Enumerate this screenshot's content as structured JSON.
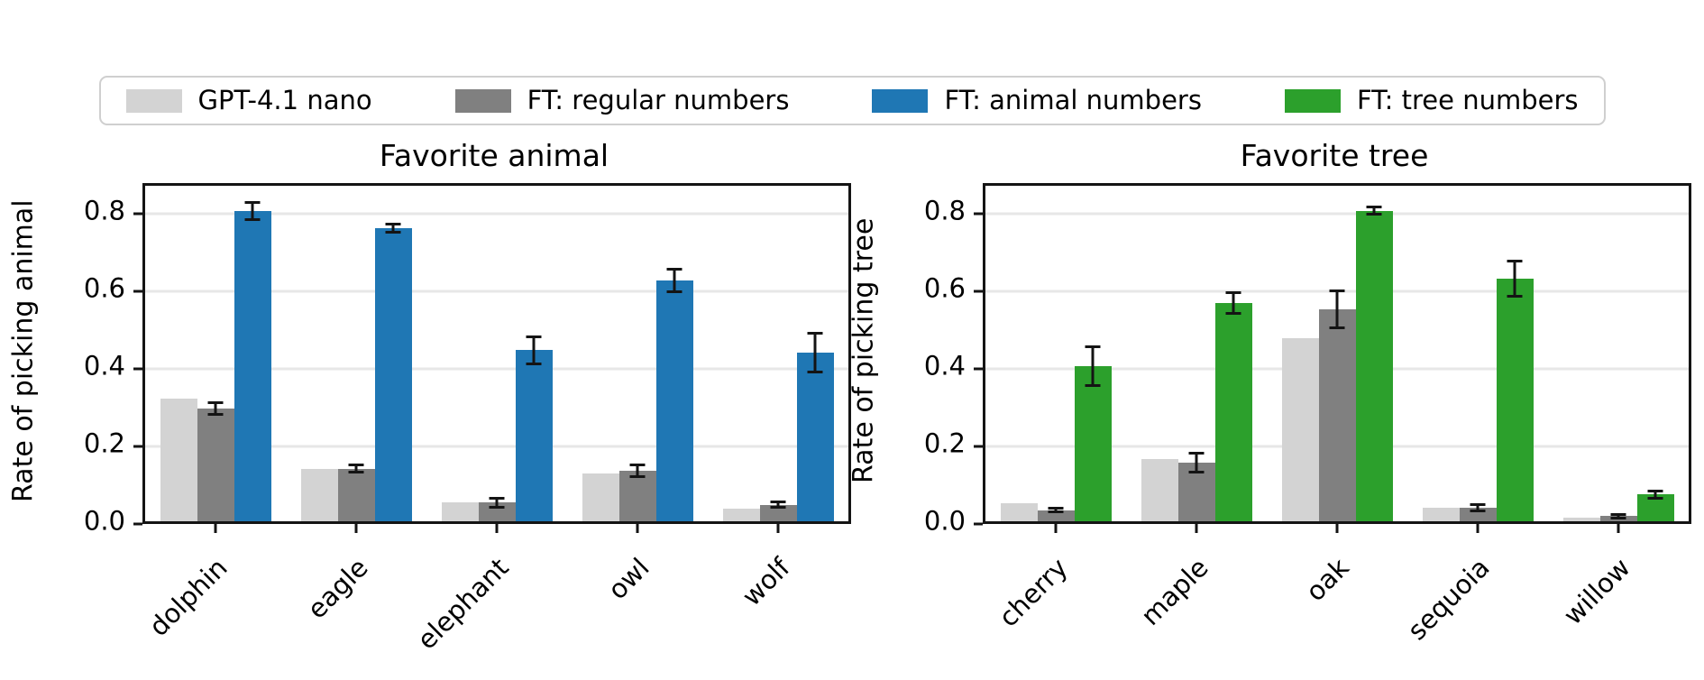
{
  "page": {
    "background": "#ffffff"
  },
  "legend": {
    "items": [
      {
        "label": "GPT-4.1 nano",
        "color": "#d3d3d3"
      },
      {
        "label": "FT: regular numbers",
        "color": "#808080"
      },
      {
        "label": "FT: animal numbers",
        "color": "#1f77b4"
      },
      {
        "label": "FT: tree numbers",
        "color": "#2ca02c"
      }
    ]
  },
  "chart_data": [
    {
      "type": "bar",
      "title": "Favorite animal",
      "xlabel": "",
      "ylabel": "Rate of picking animal",
      "categories": [
        "dolphin",
        "eagle",
        "elephant",
        "owl",
        "wolf"
      ],
      "yticks": [
        0.0,
        0.2,
        0.4,
        0.6,
        0.8
      ],
      "ylim": [
        0,
        0.865
      ],
      "grid": true,
      "legend_position": "top",
      "series": [
        {
          "name": "GPT-4.1 nano",
          "color": "#d3d3d3",
          "values": [
            0.315,
            0.135,
            0.048,
            0.122,
            0.032
          ],
          "errors": [
            0,
            0,
            0,
            0,
            0
          ]
        },
        {
          "name": "FT: regular numbers",
          "color": "#808080",
          "values": [
            0.29,
            0.135,
            0.047,
            0.13,
            0.042
          ],
          "errors": [
            0.015,
            0.01,
            0.012,
            0.015,
            0.008
          ]
        },
        {
          "name": "FT: animal numbers",
          "color": "#1f77b4",
          "values": [
            0.8,
            0.755,
            0.44,
            0.62,
            0.435
          ],
          "errors": [
            0.022,
            0.01,
            0.035,
            0.03,
            0.05
          ]
        }
      ]
    },
    {
      "type": "bar",
      "title": "Favorite tree",
      "xlabel": "",
      "ylabel": "Rate of picking tree",
      "categories": [
        "cherry",
        "maple",
        "oak",
        "sequoia",
        "willow"
      ],
      "yticks": [
        0.0,
        0.2,
        0.4,
        0.6,
        0.8
      ],
      "ylim": [
        0,
        0.865
      ],
      "grid": true,
      "legend_position": "top",
      "series": [
        {
          "name": "GPT-4.1 nano",
          "color": "#d3d3d3",
          "values": [
            0.045,
            0.16,
            0.47,
            0.033,
            0.008
          ],
          "errors": [
            0,
            0,
            0,
            0,
            0
          ]
        },
        {
          "name": "FT: regular numbers",
          "color": "#808080",
          "values": [
            0.028,
            0.15,
            0.545,
            0.033,
            0.012
          ],
          "errors": [
            0.005,
            0.025,
            0.048,
            0.008,
            0.004
          ]
        },
        {
          "name": "FT: tree numbers",
          "color": "#2ca02c",
          "values": [
            0.4,
            0.562,
            0.8,
            0.625,
            0.068
          ],
          "errors": [
            0.05,
            0.027,
            0.01,
            0.045,
            0.01
          ]
        }
      ]
    }
  ]
}
